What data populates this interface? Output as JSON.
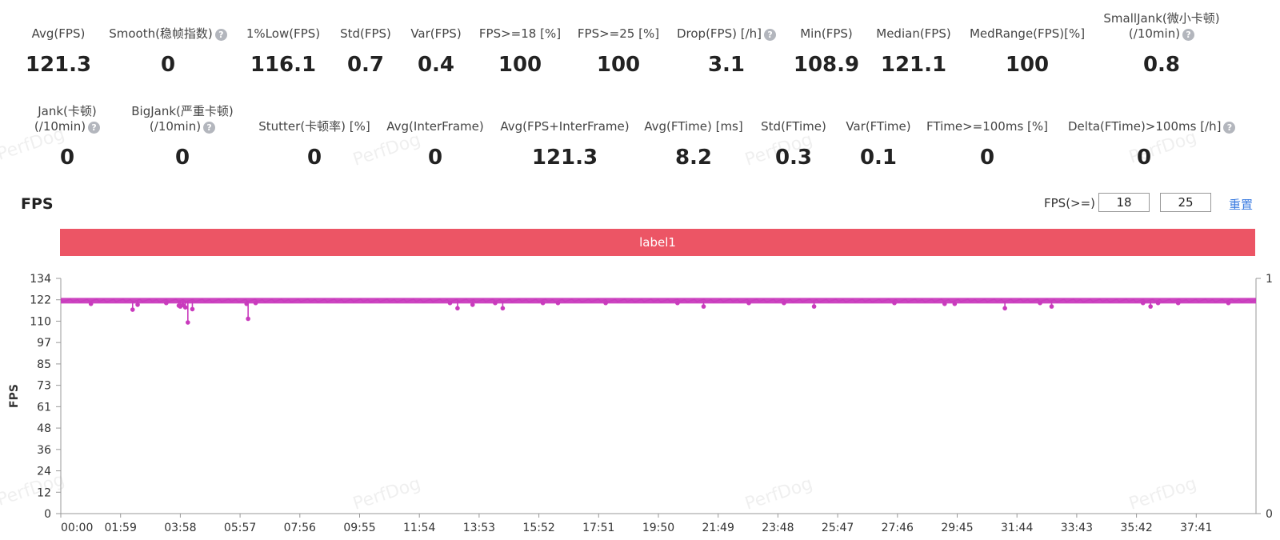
{
  "metrics_row1": [
    {
      "label": "Avg(FPS)",
      "value": "121.3",
      "help": false
    },
    {
      "label": "Smooth(稳帧指数)",
      "value": "0",
      "help": true
    },
    {
      "label": "1%Low(FPS)",
      "value": "116.1",
      "help": false
    },
    {
      "label": "Std(FPS)",
      "value": "0.7",
      "help": false
    },
    {
      "label": "Var(FPS)",
      "value": "0.4",
      "help": false
    },
    {
      "label": "FPS>=18 [%]",
      "value": "100",
      "help": false
    },
    {
      "label": "FPS>=25 [%]",
      "value": "100",
      "help": false
    },
    {
      "label": "Drop(FPS) [/h]",
      "value": "3.1",
      "help": true
    },
    {
      "label": "Min(FPS)",
      "value": "108.9",
      "help": false
    },
    {
      "label": "Median(FPS)",
      "value": "121.1",
      "help": false
    },
    {
      "label": "MedRange(FPS)[%]",
      "value": "100",
      "help": false
    },
    {
      "label": "SmallJank(微小卡顿)",
      "label2": "(/10min)",
      "value": "0.8",
      "help": true
    }
  ],
  "metrics_row2": [
    {
      "label": "Jank(卡顿)",
      "label2": "(/10min)",
      "value": "0",
      "help": true
    },
    {
      "label": "BigJank(严重卡顿)",
      "label2": "(/10min)",
      "value": "0",
      "help": true
    },
    {
      "label": "Stutter(卡顿率) [%]",
      "value": "0",
      "help": false
    },
    {
      "label": "Avg(InterFrame)",
      "value": "0",
      "help": false
    },
    {
      "label": "Avg(FPS+InterFrame)",
      "value": "121.3",
      "help": false
    },
    {
      "label": "Avg(FTime) [ms]",
      "value": "8.2",
      "help": false
    },
    {
      "label": "Std(FTime)",
      "value": "0.3",
      "help": false
    },
    {
      "label": "Var(FTime)",
      "value": "0.1",
      "help": false
    },
    {
      "label": "FTime>=100ms [%]",
      "value": "0",
      "help": false
    },
    {
      "label": "Delta(FTime)>100ms [/h]",
      "value": "0",
      "help": true
    }
  ],
  "help_glyph": "?",
  "watermark": "PerfDog",
  "section_title": "FPS",
  "fps_filter": {
    "label": "FPS(>=)",
    "value1": "18",
    "value2": "25",
    "reset_label": "重置"
  },
  "label_bar": "label1",
  "colors": {
    "series": "#c93bbd",
    "label_bar": "#ec5565",
    "link": "#3a7be0"
  },
  "chart_data": {
    "type": "line",
    "ylabel": "FPS",
    "ylim": [
      0,
      134
    ],
    "yticks": [
      "0",
      "12",
      "24",
      "36",
      "48",
      "61",
      "73",
      "85",
      "97",
      "110",
      "122",
      "134"
    ],
    "y2ticks": [
      "0",
      "1"
    ],
    "xticks": [
      "00:00",
      "01:59",
      "03:58",
      "05:57",
      "07:56",
      "09:55",
      "11:54",
      "13:53",
      "15:52",
      "17:51",
      "19:50",
      "21:49",
      "23:48",
      "25:47",
      "27:46",
      "29:45",
      "31:44",
      "33:43",
      "35:42",
      "37:41"
    ],
    "x_range_seconds": [
      0,
      2380
    ],
    "baseline_fps": 121.3,
    "dips": [
      {
        "t": 60,
        "fps": 119.5
      },
      {
        "t": 143,
        "fps": 116.2
      },
      {
        "t": 153,
        "fps": 119.0
      },
      {
        "t": 210,
        "fps": 120.0
      },
      {
        "t": 235,
        "fps": 118.5
      },
      {
        "t": 238,
        "fps": 118.0
      },
      {
        "t": 243,
        "fps": 118.8
      },
      {
        "t": 248,
        "fps": 117.5
      },
      {
        "t": 253,
        "fps": 108.9
      },
      {
        "t": 262,
        "fps": 116.5
      },
      {
        "t": 370,
        "fps": 119.5
      },
      {
        "t": 373,
        "fps": 111.0
      },
      {
        "t": 388,
        "fps": 120.0
      },
      {
        "t": 775,
        "fps": 120.0
      },
      {
        "t": 790,
        "fps": 117.0
      },
      {
        "t": 820,
        "fps": 119.0
      },
      {
        "t": 865,
        "fps": 120.0
      },
      {
        "t": 880,
        "fps": 117.0
      },
      {
        "t": 960,
        "fps": 120.0
      },
      {
        "t": 990,
        "fps": 120.0
      },
      {
        "t": 1085,
        "fps": 120.0
      },
      {
        "t": 1228,
        "fps": 120.0
      },
      {
        "t": 1280,
        "fps": 118.0
      },
      {
        "t": 1370,
        "fps": 120.0
      },
      {
        "t": 1440,
        "fps": 120.0
      },
      {
        "t": 1500,
        "fps": 118.0
      },
      {
        "t": 1660,
        "fps": 120.0
      },
      {
        "t": 1760,
        "fps": 119.5
      },
      {
        "t": 1780,
        "fps": 119.5
      },
      {
        "t": 1880,
        "fps": 117.0
      },
      {
        "t": 1950,
        "fps": 120.0
      },
      {
        "t": 1973,
        "fps": 118.0
      },
      {
        "t": 2155,
        "fps": 120.0
      },
      {
        "t": 2170,
        "fps": 118.0
      },
      {
        "t": 2185,
        "fps": 120.0
      },
      {
        "t": 2225,
        "fps": 120.0
      },
      {
        "t": 2325,
        "fps": 120.0
      }
    ]
  }
}
